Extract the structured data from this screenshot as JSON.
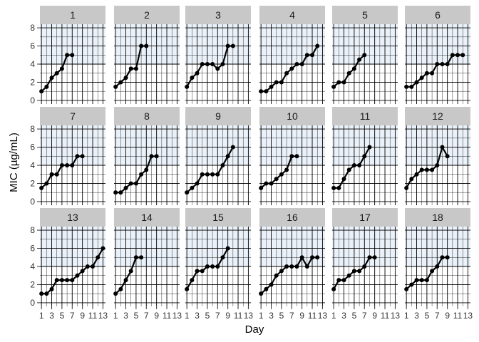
{
  "chart_data": {
    "type": "line",
    "facet_layout": "3 rows x 6 columns",
    "xlabel": "Day",
    "ylabel": "MIC (µg/mL)",
    "xlim": [
      1,
      13
    ],
    "ylim": [
      0,
      8
    ],
    "x_ticks": [
      1,
      3,
      5,
      7,
      9,
      11,
      13
    ],
    "y_ticks": [
      0,
      2,
      4,
      6,
      8
    ],
    "shaded_band": {
      "y_from": 4,
      "y_to": 8.4,
      "color": "#eaf1f8"
    },
    "grid": true,
    "colors": {
      "strip_background": "#c8c8c8",
      "line": "#000000",
      "grid": "#000000"
    },
    "panels": [
      {
        "label": "1",
        "x": [
          1,
          2,
          3,
          4,
          5,
          6,
          7
        ],
        "y": [
          1,
          1.5,
          2.5,
          3,
          3.5,
          5,
          5
        ]
      },
      {
        "label": "2",
        "x": [
          1,
          2,
          3,
          4,
          5,
          6,
          7
        ],
        "y": [
          1.5,
          2,
          2.5,
          3.5,
          3.5,
          6,
          6
        ]
      },
      {
        "label": "3",
        "x": [
          1,
          2,
          3,
          4,
          5,
          6,
          7,
          8,
          9,
          10
        ],
        "y": [
          1.5,
          2.5,
          3,
          4,
          4,
          4,
          3.5,
          4,
          6,
          6
        ]
      },
      {
        "label": "4",
        "x": [
          1,
          2,
          3,
          4,
          5,
          6,
          7,
          8,
          9,
          10,
          11,
          12
        ],
        "y": [
          1,
          1,
          1.5,
          2,
          2,
          3,
          3.5,
          4,
          4,
          5,
          5,
          6
        ]
      },
      {
        "label": "5",
        "x": [
          1,
          2,
          3,
          4,
          5,
          6,
          7
        ],
        "y": [
          1.5,
          2,
          2,
          3,
          3.5,
          4.5,
          5
        ]
      },
      {
        "label": "6",
        "x": [
          1,
          2,
          3,
          4,
          5,
          6,
          7,
          8,
          9,
          10,
          11,
          12
        ],
        "y": [
          1.5,
          1.5,
          2,
          2.5,
          3,
          3,
          4,
          4,
          4,
          5,
          5,
          5
        ]
      },
      {
        "label": "7",
        "x": [
          1,
          2,
          3,
          4,
          5,
          6,
          7,
          8,
          9
        ],
        "y": [
          1.5,
          2,
          3,
          3,
          4,
          4,
          4,
          5,
          5
        ]
      },
      {
        "label": "8",
        "x": [
          1,
          2,
          3,
          4,
          5,
          6,
          7,
          8,
          9
        ],
        "y": [
          1,
          1,
          1.5,
          2,
          2,
          3,
          3.5,
          5,
          5
        ]
      },
      {
        "label": "9",
        "x": [
          1,
          2,
          3,
          4,
          5,
          6,
          7,
          8,
          9,
          10
        ],
        "y": [
          1,
          1.5,
          2,
          3,
          3,
          3,
          3,
          4,
          5,
          6
        ]
      },
      {
        "label": "10",
        "x": [
          1,
          2,
          3,
          4,
          5,
          6,
          7,
          8
        ],
        "y": [
          1.5,
          2,
          2,
          2.5,
          3,
          3.5,
          5,
          5
        ]
      },
      {
        "label": "11",
        "x": [
          1,
          2,
          3,
          4,
          5,
          6,
          7,
          8
        ],
        "y": [
          1.5,
          1.5,
          2.5,
          3.5,
          4,
          4,
          5,
          6
        ]
      },
      {
        "label": "12",
        "x": [
          1,
          2,
          3,
          4,
          5,
          6,
          7,
          8,
          9
        ],
        "y": [
          1.5,
          2.5,
          3,
          3.5,
          3.5,
          3.5,
          4,
          6,
          5
        ]
      },
      {
        "label": "13",
        "x": [
          1,
          2,
          3,
          4,
          5,
          6,
          7,
          8,
          9,
          10,
          11,
          12,
          13
        ],
        "y": [
          1,
          1,
          1.5,
          2.5,
          2.5,
          2.5,
          2.5,
          3,
          3.5,
          4,
          4,
          5,
          6
        ]
      },
      {
        "label": "14",
        "x": [
          1,
          2,
          3,
          4,
          5,
          6
        ],
        "y": [
          1,
          1.5,
          2.5,
          3.5,
          5,
          5
        ]
      },
      {
        "label": "15",
        "x": [
          1,
          2,
          3,
          4,
          5,
          6,
          7,
          8,
          9
        ],
        "y": [
          1.5,
          2.5,
          3.5,
          3.5,
          4,
          4,
          4,
          5,
          6
        ]
      },
      {
        "label": "16",
        "x": [
          1,
          2,
          3,
          4,
          5,
          6,
          7,
          8,
          9,
          10,
          11,
          12
        ],
        "y": [
          1,
          1.5,
          2,
          3,
          3.5,
          4,
          4,
          4,
          5,
          4,
          5,
          5
        ]
      },
      {
        "label": "17",
        "x": [
          1,
          2,
          3,
          4,
          5,
          6,
          7,
          8,
          9
        ],
        "y": [
          1.5,
          2.5,
          2.5,
          3,
          3.5,
          3.5,
          4,
          5,
          5
        ]
      },
      {
        "label": "18",
        "x": [
          1,
          2,
          3,
          4,
          5,
          6,
          7,
          8,
          9
        ],
        "y": [
          1.5,
          2,
          2.5,
          2.5,
          2.5,
          3.5,
          4,
          5,
          5
        ]
      }
    ]
  }
}
